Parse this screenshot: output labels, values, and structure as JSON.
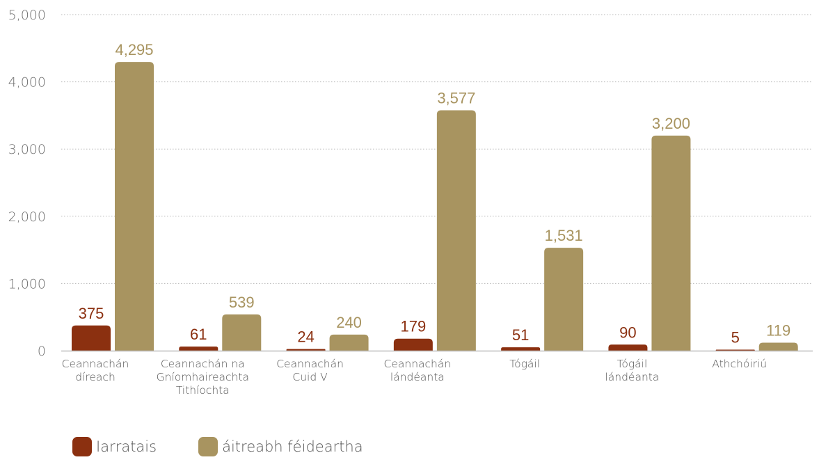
{
  "chart_data": {
    "type": "bar",
    "categories": [
      [
        "Ceannachán",
        "díreach"
      ],
      [
        "Ceannachán na",
        "Gníomhaireachta",
        "Tithíochta"
      ],
      [
        "Ceannachán",
        "Cuid V"
      ],
      [
        "Ceannachán",
        "lándéanta"
      ],
      [
        "Tógáil"
      ],
      [
        "Tógáil",
        "lándéanta"
      ],
      [
        "Athchóiriú"
      ]
    ],
    "series": [
      {
        "name": "Iarratais",
        "color": "#8B3010",
        "values": [
          375,
          61,
          24,
          179,
          51,
          90,
          5
        ],
        "labels": [
          "375",
          "61",
          "24",
          "179",
          "51",
          "90",
          "5"
        ]
      },
      {
        "name": "áitreabh féideartha",
        "color": "#A89460",
        "values": [
          4295,
          539,
          240,
          3577,
          1531,
          3200,
          119
        ],
        "labels": [
          "4,295",
          "539",
          "240",
          "3,577",
          "1,531",
          "3,200",
          "119"
        ]
      }
    ],
    "ylim": [
      0,
      5000
    ],
    "yticks": [
      0,
      1000,
      2000,
      3000,
      4000,
      5000
    ],
    "ytick_labels": [
      "0",
      "1,000",
      "2,000",
      "3,000",
      "4,000",
      "5,000"
    ],
    "grid": true,
    "legend_position": "bottom-left"
  }
}
